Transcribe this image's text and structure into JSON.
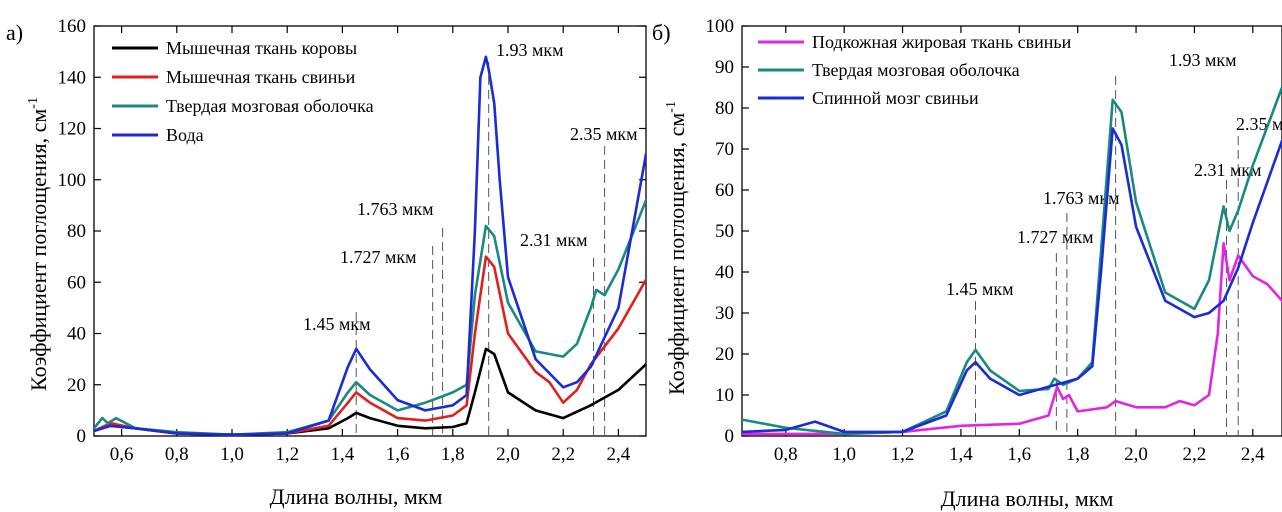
{
  "figure": {
    "panel_a": {
      "letter": "а)",
      "ylabel": "Коэффициент поглощения, см",
      "ylabel_sup": "-1",
      "xlabel": "Длина волны, мкм"
    },
    "panel_b": {
      "letter": "б)",
      "ylabel": "Коэффициент поглощения, см",
      "ylabel_sup": "-1",
      "xlabel": "Длина волны, мкм"
    }
  },
  "chart_data": [
    {
      "panel": "а)",
      "type": "line",
      "xlabel": "Длина волны, мкм",
      "ylabel": "Коэффициент поглощения, см-1",
      "xlim": [
        0.5,
        2.5
      ],
      "ylim": [
        0,
        160
      ],
      "xticks": [
        0.6,
        0.8,
        1.0,
        1.2,
        1.4,
        1.6,
        1.8,
        2.0,
        2.2,
        2.4
      ],
      "xtick_labels": [
        "0,6",
        "0,8",
        "1,0",
        "1,2",
        "1,4",
        "1,6",
        "1,8",
        "2,0",
        "2,2",
        "2,4"
      ],
      "yticks": [
        0,
        20,
        40,
        60,
        80,
        100,
        120,
        140,
        160
      ],
      "ytick_labels": [
        "0",
        "20",
        "40",
        "60",
        "80",
        "100",
        "120",
        "140",
        "160"
      ],
      "legend_position": "top-left",
      "series": [
        {
          "name": "Мышечная ткань коровы",
          "color": "#000000",
          "x": [
            0.5,
            0.56,
            0.65,
            0.8,
            1.0,
            1.2,
            1.35,
            1.42,
            1.45,
            1.5,
            1.6,
            1.7,
            1.8,
            1.85,
            1.88,
            1.92,
            1.95,
            2.0,
            2.1,
            2.2,
            2.3,
            2.4,
            2.5
          ],
          "y": [
            2,
            4,
            3,
            1,
            0.5,
            1,
            3,
            7,
            9,
            7,
            4,
            3,
            3.5,
            5,
            17,
            34,
            32,
            17,
            10,
            7,
            12,
            18,
            28
          ]
        },
        {
          "name": "Мышечная ткань свиньи",
          "color": "#e1201e",
          "x": [
            0.5,
            0.56,
            0.65,
            0.8,
            1.0,
            1.2,
            1.35,
            1.42,
            1.45,
            1.5,
            1.6,
            1.7,
            1.8,
            1.85,
            1.88,
            1.92,
            1.95,
            2.0,
            2.1,
            2.15,
            2.2,
            2.25,
            2.3,
            2.4,
            2.5
          ],
          "y": [
            2,
            5,
            3,
            1,
            0.5,
            1,
            4,
            13,
            17,
            13,
            7,
            6,
            8,
            12,
            40,
            70,
            66,
            40,
            25,
            21,
            13,
            18,
            28,
            42,
            61
          ]
        },
        {
          "name": "Твердая мозговая оболочка",
          "color": "#1a8a80",
          "x": [
            0.5,
            0.53,
            0.55,
            0.58,
            0.65,
            0.8,
            1.0,
            1.2,
            1.35,
            1.42,
            1.45,
            1.5,
            1.6,
            1.7,
            1.75,
            1.8,
            1.85,
            1.88,
            1.92,
            1.95,
            2.0,
            2.1,
            2.2,
            2.25,
            2.3,
            2.32,
            2.35,
            2.4,
            2.5
          ],
          "y": [
            3,
            7,
            5,
            7,
            3,
            1.5,
            0.5,
            1.5,
            6,
            17,
            21,
            16,
            10,
            13,
            15,
            17,
            20,
            55,
            82,
            78,
            52,
            33,
            31,
            36,
            50,
            57,
            55,
            65,
            92
          ]
        },
        {
          "name": "Вода",
          "color": "#1b2bd6",
          "x": [
            0.5,
            0.56,
            0.65,
            0.8,
            1.0,
            1.2,
            1.35,
            1.42,
            1.45,
            1.5,
            1.6,
            1.7,
            1.8,
            1.85,
            1.88,
            1.9,
            1.92,
            1.93,
            1.95,
            1.97,
            2.0,
            2.1,
            2.2,
            2.25,
            2.3,
            2.4,
            2.5
          ],
          "y": [
            2,
            4,
            3,
            1,
            0.5,
            1,
            6,
            27,
            34,
            26,
            14,
            10,
            12,
            16,
            80,
            140,
            148,
            143,
            130,
            100,
            62,
            30,
            19,
            21,
            27,
            50,
            110
          ]
        }
      ],
      "annotations": [
        {
          "text": "1.45 мкм",
          "x": 1.45
        },
        {
          "text": "1.727 мкм",
          "x": 1.727
        },
        {
          "text": "1.763 мкм",
          "x": 1.763
        },
        {
          "text": "1.93 мкм",
          "x": 1.93
        },
        {
          "text": "2.31 мкм",
          "x": 2.31
        },
        {
          "text": "2.35 мкм",
          "x": 2.35
        }
      ]
    },
    {
      "panel": "б)",
      "type": "line",
      "xlabel": "Длина волны, мкм",
      "ylabel": "Коэффициент поглощения, см-1",
      "xlim": [
        0.65,
        2.5
      ],
      "ylim": [
        0,
        100
      ],
      "xticks": [
        0.8,
        1.0,
        1.2,
        1.4,
        1.6,
        1.8,
        2.0,
        2.2,
        2.4
      ],
      "xtick_labels": [
        "0,8",
        "1,0",
        "1,2",
        "1,4",
        "1,6",
        "1,8",
        "2,0",
        "2,2",
        "2,4"
      ],
      "yticks": [
        0,
        10,
        20,
        30,
        40,
        50,
        60,
        70,
        80,
        90,
        100
      ],
      "ytick_labels": [
        "0",
        "10",
        "20",
        "30",
        "40",
        "50",
        "60",
        "70",
        "80",
        "90",
        "100"
      ],
      "legend_position": "top-left",
      "series": [
        {
          "name": "Подкожная жировая ткань свиньи",
          "color": "#e026e0",
          "x": [
            0.65,
            0.8,
            1.0,
            1.2,
            1.4,
            1.6,
            1.7,
            1.73,
            1.75,
            1.77,
            1.8,
            1.9,
            1.93,
            2.0,
            2.1,
            2.15,
            2.2,
            2.25,
            2.28,
            2.3,
            2.32,
            2.35,
            2.4,
            2.45,
            2.5
          ],
          "y": [
            0.5,
            0.5,
            0.5,
            1,
            2.5,
            3,
            5,
            12,
            9,
            10,
            6,
            7,
            8.5,
            7,
            7,
            8.5,
            7.5,
            10,
            25,
            47,
            38,
            44,
            39,
            37,
            33
          ]
        },
        {
          "name": "Твердая мозговая оболочка",
          "color": "#1a8a80",
          "x": [
            0.65,
            0.8,
            1.0,
            1.2,
            1.35,
            1.42,
            1.45,
            1.5,
            1.6,
            1.7,
            1.72,
            1.75,
            1.8,
            1.85,
            1.88,
            1.92,
            1.95,
            2.0,
            2.1,
            2.2,
            2.25,
            2.3,
            2.32,
            2.35,
            2.4,
            2.5
          ],
          "y": [
            4,
            2,
            0.5,
            1,
            6,
            18,
            21,
            16,
            11,
            11.5,
            14,
            12.5,
            14,
            18,
            45,
            82,
            79,
            57,
            35,
            31,
            38,
            56,
            50,
            55,
            66,
            85
          ]
        },
        {
          "name": "Спинной мозг свиньи",
          "color": "#1b2bd6",
          "x": [
            0.65,
            0.8,
            0.9,
            1.0,
            1.2,
            1.35,
            1.42,
            1.45,
            1.5,
            1.6,
            1.7,
            1.75,
            1.8,
            1.85,
            1.88,
            1.92,
            1.95,
            2.0,
            2.1,
            2.2,
            2.25,
            2.3,
            2.35,
            2.4,
            2.5
          ],
          "y": [
            1,
            1.5,
            3.5,
            1,
            1,
            5,
            16,
            18,
            14,
            10,
            12,
            13,
            14,
            17,
            40,
            75,
            71,
            51,
            33,
            29,
            30,
            33,
            41,
            52,
            72
          ]
        }
      ],
      "annotations": [
        {
          "text": "1.45 мкм",
          "x": 1.45
        },
        {
          "text": "1.727 мкм",
          "x": 1.727
        },
        {
          "text": "1.763 мкм",
          "x": 1.763
        },
        {
          "text": "1.93 мкм",
          "x": 1.93
        },
        {
          "text": "2.31 мкм",
          "x": 2.31
        },
        {
          "text": "2.35 мкм",
          "x": 2.35
        }
      ]
    }
  ]
}
